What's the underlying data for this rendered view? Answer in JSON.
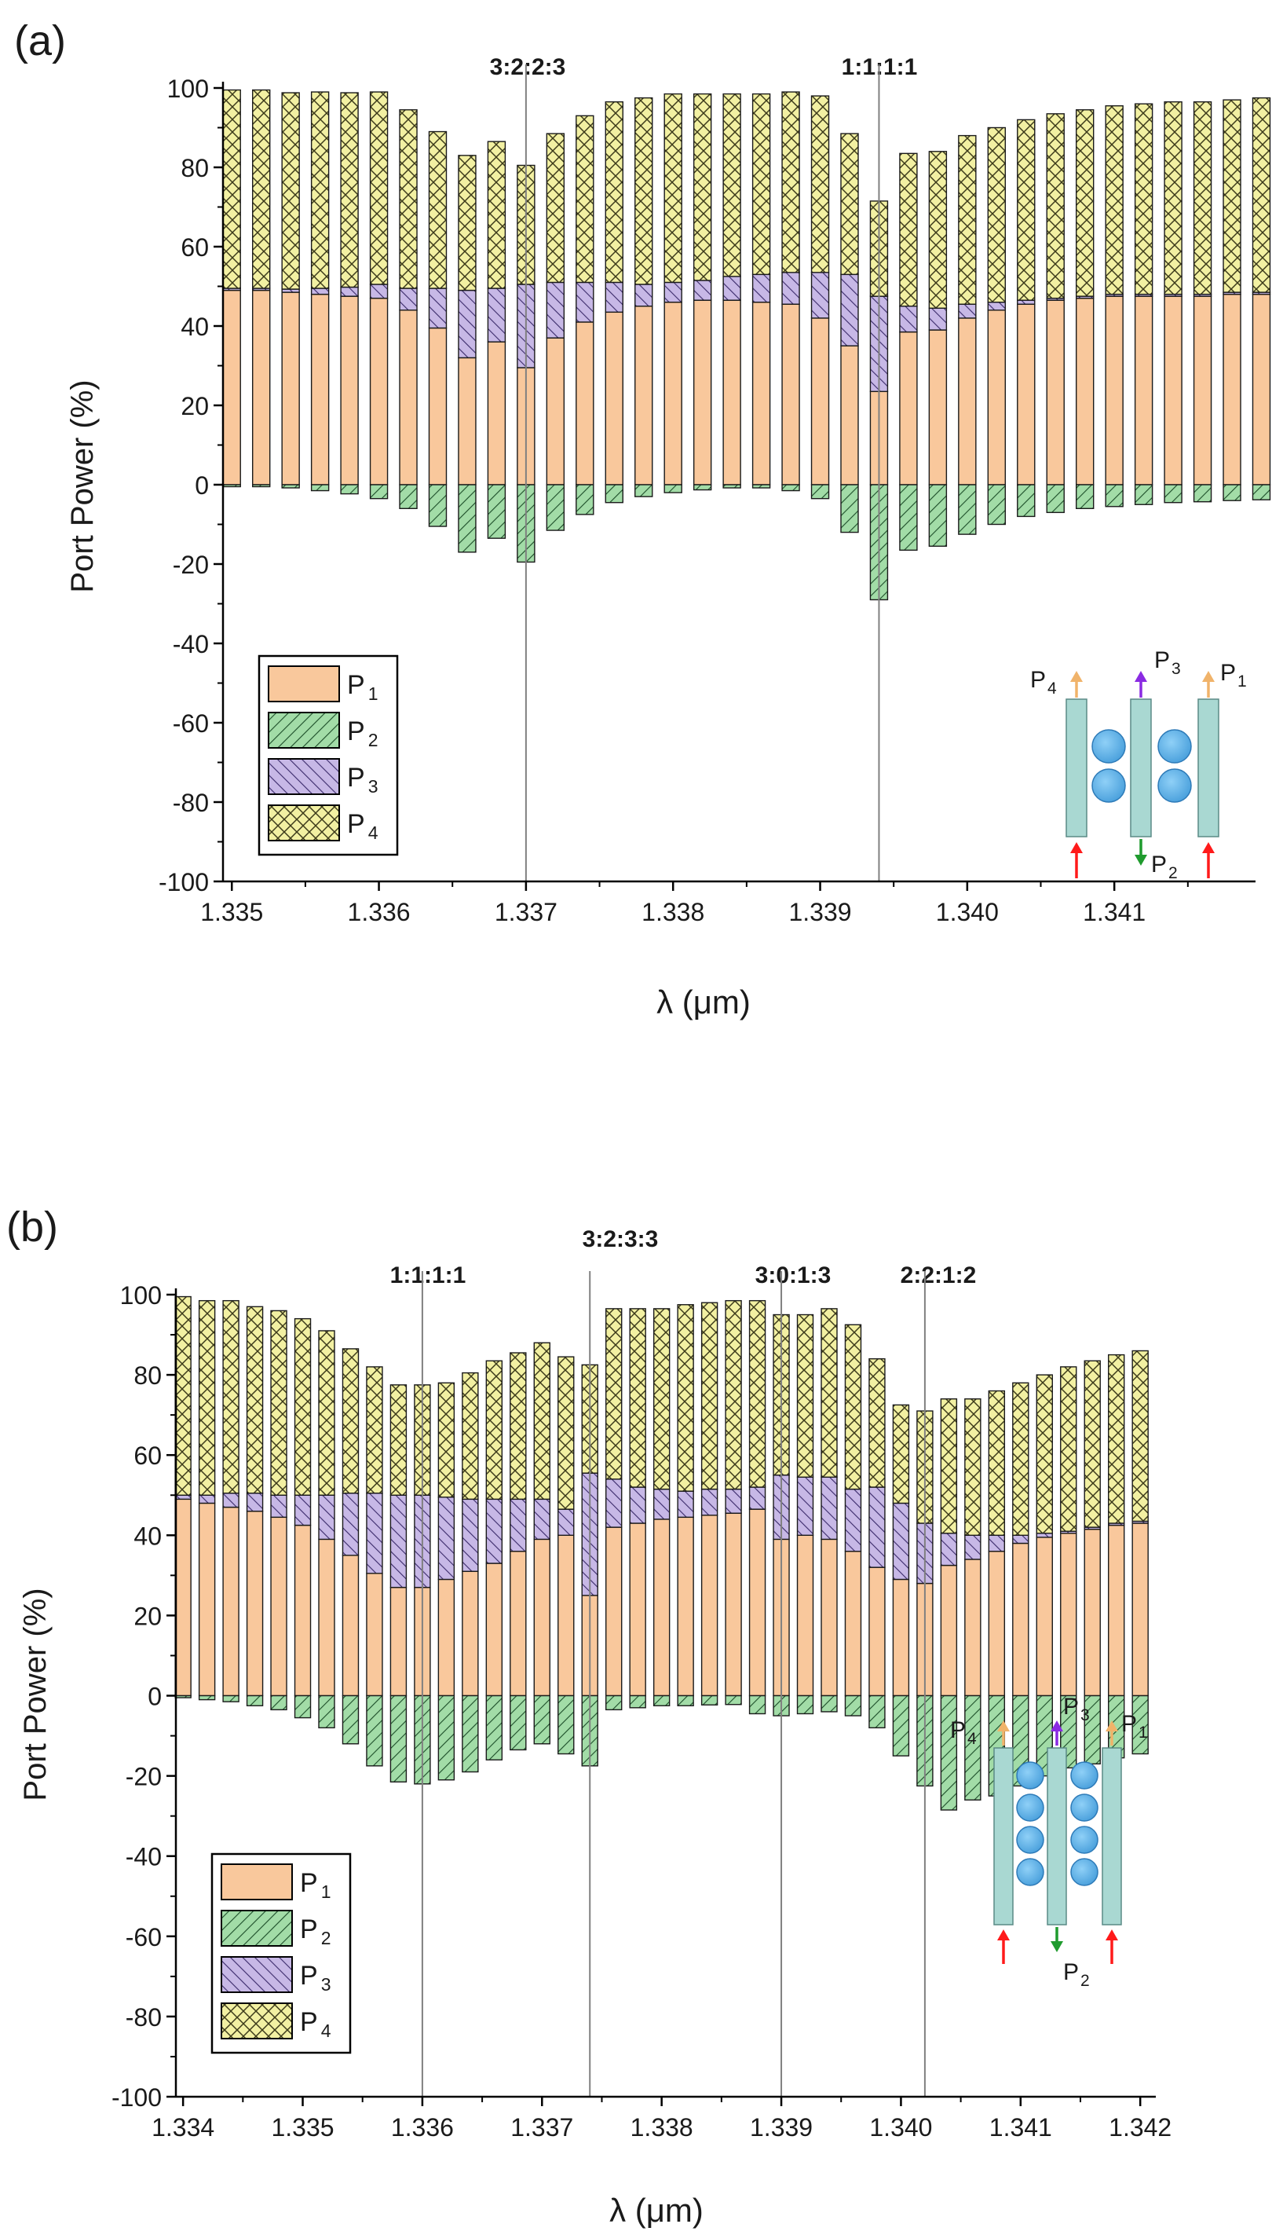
{
  "colors": {
    "p1": "#f9c89c",
    "p2": "#a2dca7",
    "p3": "#c7b8e6",
    "p4": "#f2f0a2",
    "ring": "#6ab4e8",
    "waveguide": "#a9d8d2",
    "arrow_in": "#ff1a1a",
    "arrow_p2": "#1f9b2e",
    "arrow_p3": "#8a2be2",
    "arrow_p1p4": "#f0b36a",
    "marker_line": "#808080"
  },
  "chart_data": [
    {
      "type": "bar",
      "panel_label": "(a)",
      "xlabel": "λ (μm)",
      "ylabel": "Port Power (%)",
      "xlim": [
        1.33494,
        1.34196
      ],
      "ylim": [
        -100,
        100
      ],
      "xticks": [
        1.335,
        1.336,
        1.337,
        1.338,
        1.339,
        1.34,
        1.341
      ],
      "xtick_labels": [
        "1.335",
        "1.336",
        "1.337",
        "1.338",
        "1.339",
        "1.340",
        "1.341"
      ],
      "yticks": [
        -100,
        -80,
        -60,
        -40,
        -20,
        0,
        20,
        40,
        60,
        80,
        100
      ],
      "ytick_labels": [
        "-100",
        "-80",
        "-60",
        "-40",
        "-20",
        "0",
        "20",
        "40",
        "60",
        "80",
        "100"
      ],
      "x": [
        1.335,
        1.3352,
        1.3354,
        1.3356,
        1.3358,
        1.336,
        1.3362,
        1.3364,
        1.3366,
        1.3368,
        1.337,
        1.3372,
        1.3374,
        1.3376,
        1.3378,
        1.338,
        1.3382,
        1.3384,
        1.3386,
        1.3388,
        1.339,
        1.3392,
        1.3394,
        1.3396,
        1.3398,
        1.34,
        1.3402,
        1.3404,
        1.3406,
        1.3408,
        1.341,
        1.3412,
        1.3414,
        1.3416,
        1.3418,
        1.342
      ],
      "series": [
        {
          "name": "P1",
          "values": [
            49,
            49,
            48.5,
            48,
            47.5,
            47,
            44,
            39.5,
            32,
            36,
            29.5,
            37,
            41,
            43.5,
            45,
            46,
            46.5,
            46.5,
            46,
            45.5,
            42,
            35,
            23.5,
            38.5,
            39,
            42,
            44,
            45.5,
            46.5,
            47,
            47.5,
            47.5,
            47.5,
            47.5,
            48,
            48
          ]
        },
        {
          "name": "P2",
          "values": [
            -0.5,
            -0.5,
            -0.8,
            -1.5,
            -2.3,
            -3.5,
            -6,
            -10.5,
            -17,
            -13.5,
            -19.5,
            -11.5,
            -7.5,
            -4.5,
            -3,
            -2,
            -1.3,
            -0.8,
            -0.8,
            -1.5,
            -3.5,
            -12,
            -29,
            -16.5,
            -15.5,
            -12.5,
            -10,
            -8,
            -7,
            -6,
            -5.5,
            -5,
            -4.5,
            -4.3,
            -4,
            -3.8
          ]
        },
        {
          "name": "P3",
          "values": [
            0.5,
            0.5,
            0.8,
            1.5,
            2.3,
            3.5,
            5.5,
            10,
            17,
            13.5,
            21,
            14,
            10,
            7.5,
            5.5,
            5,
            5,
            6,
            7,
            8,
            11.5,
            18,
            24,
            6.5,
            5.5,
            3.5,
            2,
            1,
            0.5,
            0.5,
            0.5,
            0.5,
            0.5,
            0.5,
            0.5,
            0.5
          ]
        },
        {
          "name": "P4",
          "values": [
            50,
            50,
            49.5,
            49.5,
            49,
            48.5,
            45,
            39.5,
            34,
            37,
            30,
            37.5,
            42,
            45.5,
            47,
            47.5,
            47,
            46,
            45.5,
            45.5,
            44.5,
            35.5,
            24,
            38.5,
            39.5,
            42.5,
            44,
            45.5,
            46.5,
            47,
            47.5,
            48,
            48.5,
            48.5,
            48.5,
            49
          ]
        }
      ],
      "markers": [
        {
          "x": 1.337,
          "label": "3:2:2:3"
        },
        {
          "x": 1.3394,
          "label": "1:1:1:1"
        }
      ],
      "legend": {
        "position": "lower-left",
        "labels": [
          "P",
          "P",
          "P",
          "P"
        ],
        "subscripts": [
          "1",
          "2",
          "3",
          "4"
        ]
      },
      "inset": {
        "rings_per_column": 2,
        "labels": [
          "P",
          "P",
          "P",
          "P"
        ],
        "subscripts": [
          "4",
          "3",
          "1",
          "2"
        ]
      }
    },
    {
      "type": "bar",
      "panel_label": "(b)",
      "xlabel": "λ (μm)",
      "ylabel": "Port Power (%)",
      "xlim": [
        1.33394,
        1.34213
      ],
      "ylim": [
        -100,
        100
      ],
      "xticks": [
        1.334,
        1.335,
        1.336,
        1.337,
        1.338,
        1.339,
        1.34,
        1.341,
        1.342
      ],
      "xtick_labels": [
        "1.334",
        "1.335",
        "1.336",
        "1.337",
        "1.338",
        "1.339",
        "1.340",
        "1.341",
        "1.342"
      ],
      "yticks": [
        -100,
        -80,
        -60,
        -40,
        -20,
        0,
        20,
        40,
        60,
        80,
        100
      ],
      "ytick_labels": [
        "-100",
        "-80",
        "-60",
        "-40",
        "-20",
        "0",
        "20",
        "40",
        "60",
        "80",
        "100"
      ],
      "x": [
        1.334,
        1.3342,
        1.3344,
        1.3346,
        1.3348,
        1.335,
        1.3352,
        1.3354,
        1.3356,
        1.3358,
        1.336,
        1.3362,
        1.3364,
        1.3366,
        1.3368,
        1.337,
        1.3372,
        1.3374,
        1.3376,
        1.3378,
        1.338,
        1.3382,
        1.3384,
        1.3386,
        1.3388,
        1.339,
        1.3392,
        1.3394,
        1.3396,
        1.3398,
        1.34,
        1.3402,
        1.3404,
        1.3406,
        1.3408,
        1.341,
        1.3412,
        1.3414,
        1.3416,
        1.3418,
        1.342
      ],
      "series": [
        {
          "name": "P1",
          "values": [
            49,
            48,
            47,
            46,
            44.5,
            42.5,
            39,
            35,
            30.5,
            27,
            27,
            29,
            31,
            33,
            36,
            39,
            40,
            25,
            42,
            43,
            44,
            44.5,
            45,
            45.5,
            46.5,
            39,
            40,
            39,
            36,
            32,
            29,
            28,
            32.5,
            34,
            36,
            38,
            39.5,
            40.5,
            41.5,
            42.5,
            43
          ]
        },
        {
          "name": "P2",
          "values": [
            -0.5,
            -1,
            -1.5,
            -2.5,
            -3.5,
            -5.5,
            -8,
            -12,
            -17.5,
            -21.5,
            -22,
            -21,
            -19,
            -16,
            -13.5,
            -12,
            -14.5,
            -17.5,
            -3.5,
            -3,
            -2.5,
            -2.5,
            -2.3,
            -2.2,
            -4.5,
            -5,
            -4.5,
            -4,
            -5,
            -8,
            -15,
            -22.5,
            -28.5,
            -26,
            -25,
            -22.5,
            -20,
            -18,
            -17,
            -15.5,
            -14.5
          ]
        },
        {
          "name": "P3",
          "values": [
            1,
            2,
            3.5,
            4.5,
            5.5,
            7.5,
            11,
            15.5,
            20,
            23,
            23,
            20.5,
            18,
            16,
            13,
            10,
            6.5,
            30.5,
            12,
            9,
            7.5,
            6.5,
            6.5,
            6,
            5.5,
            16,
            14.5,
            15.5,
            15.5,
            20,
            19,
            15,
            8,
            6,
            4,
            2,
            1,
            0.5,
            0.5,
            0.5,
            0.5
          ]
        },
        {
          "name": "P4",
          "values": [
            49.5,
            48.5,
            48,
            46.5,
            46,
            44,
            41,
            36,
            31.5,
            27.5,
            27.5,
            28.5,
            31.5,
            34.5,
            36.5,
            39,
            38,
            27,
            42.5,
            44.5,
            45,
            46.5,
            46.5,
            47,
            46.5,
            40,
            40.5,
            42,
            41,
            32,
            24.5,
            28,
            33.5,
            34,
            36,
            38,
            39.5,
            41,
            41.5,
            42,
            42.5
          ]
        }
      ],
      "markers": [
        {
          "x": 1.336,
          "label": "1:1:1:1"
        },
        {
          "x": 1.3374,
          "label": "3:2:3:3"
        },
        {
          "x": 1.339,
          "label": "3:0:1:3"
        },
        {
          "x": 1.3402,
          "label": "2:2:1:2"
        }
      ],
      "legend": {
        "position": "lower-left",
        "labels": [
          "P",
          "P",
          "P",
          "P"
        ],
        "subscripts": [
          "1",
          "2",
          "3",
          "4"
        ]
      },
      "inset": {
        "rings_per_column": 4,
        "labels": [
          "P",
          "P",
          "P",
          "P"
        ],
        "subscripts": [
          "4",
          "3",
          "1",
          "2"
        ]
      }
    }
  ]
}
